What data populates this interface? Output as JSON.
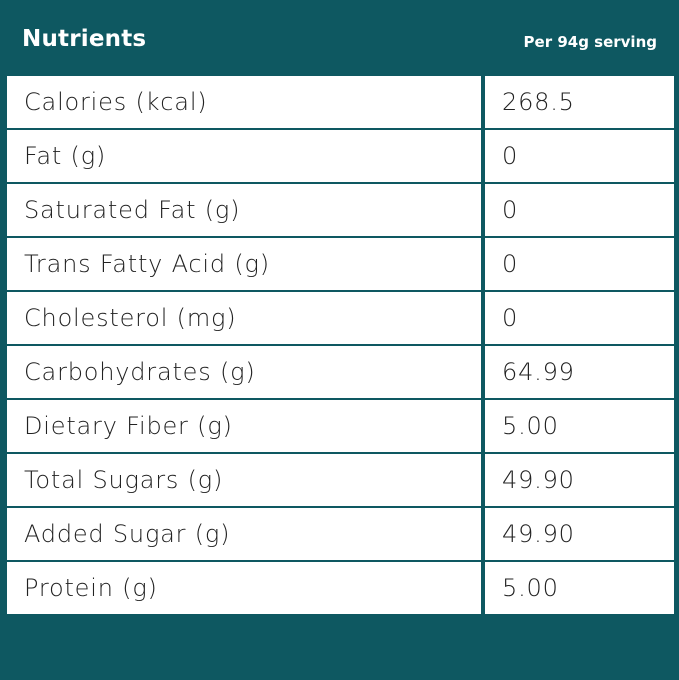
{
  "header": {
    "title": "Nutrients",
    "serving": "Per 94g serving"
  },
  "table": {
    "rows": [
      [
        "Calories (kcal)",
        "268.5"
      ],
      [
        "Fat (g)",
        "0"
      ],
      [
        "Saturated Fat (g)",
        "0"
      ],
      [
        "Trans Fatty Acid (g)",
        "0"
      ],
      [
        "Cholesterol (mg)",
        "0"
      ],
      [
        "Carbohydrates (g)",
        "64.99"
      ],
      [
        "Dietary Fiber (g)",
        "5.00"
      ],
      [
        "Total Sugars (g)",
        "49.90"
      ],
      [
        "Added Sugar (g)",
        "49.90"
      ],
      [
        "Protein (g)",
        "5.00"
      ]
    ]
  }
}
